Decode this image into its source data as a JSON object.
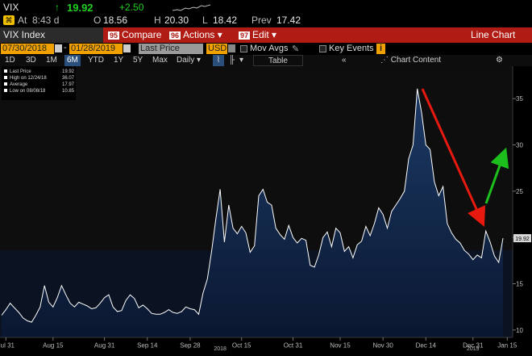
{
  "quote": {
    "ticker": "VIX",
    "arrow": "↑",
    "last": "19.92",
    "change": "+2.50",
    "at_label": "At",
    "time": "8:43 d",
    "open_label": "O",
    "open": "18.56",
    "high_label": "H",
    "high": "20.30",
    "low_label": "L",
    "low": "18.42",
    "prev_label": "Prev",
    "prev": "17.42"
  },
  "menubar": {
    "security": "VIX Index",
    "compare_num": "95",
    "compare": "Compare",
    "actions_num": "96",
    "actions": "Actions",
    "edit_num": "97",
    "edit": "Edit",
    "title": "Line Chart"
  },
  "controls": {
    "start_date": "07/30/2018",
    "end_date": "01/28/2019",
    "price_field": "Last Price",
    "currency": "USD",
    "mov_avgs": "Mov Avgs",
    "key_events": "Key Events",
    "key_events_badge": "i"
  },
  "tabs": {
    "ranges": [
      "1D",
      "3D",
      "1M",
      "6M",
      "YTD",
      "1Y",
      "5Y",
      "Max"
    ],
    "selected": "6M",
    "period": "Daily",
    "table": "Table",
    "chart_content": "Chart Content"
  },
  "legend": {
    "items": [
      {
        "label": "Last Price",
        "value": "19.92",
        "color": "#ffffff"
      },
      {
        "label": "High on 12/24/18",
        "value": "36.07",
        "color": "#ffffff"
      },
      {
        "label": "Average",
        "value": "17.97",
        "color": "#ffffff"
      },
      {
        "label": "Low on 08/08/18",
        "value": "10.85",
        "color": "#ffffff"
      }
    ]
  },
  "colors": {
    "menubar": "#b01b14",
    "field": "#f0a100",
    "line": "#ffffff",
    "area_top": "#1c3a66",
    "area_bottom": "#0a1730",
    "up": "#1fd11f",
    "down_arrow": "#e8190e",
    "up_arrow": "#1cbf1c"
  },
  "chart_data": {
    "type": "area",
    "series": [
      {
        "name": "Last Price",
        "values": [
          11.6,
          12.2,
          12.9,
          12.4,
          11.9,
          11.3,
          11.0,
          10.85,
          11.6,
          12.5,
          14.8,
          13.0,
          12.5,
          13.5,
          14.8,
          13.8,
          12.9,
          12.5,
          13.0,
          12.8,
          12.6,
          12.3,
          12.4,
          12.9,
          13.5,
          13.8,
          12.5,
          12.0,
          12.1,
          13.2,
          13.8,
          13.4,
          12.4,
          12.7,
          12.3,
          11.8,
          11.7,
          11.7,
          11.9,
          12.2,
          11.9,
          11.8,
          12.0,
          12.5,
          12.3,
          12.2,
          11.7,
          14.0,
          15.5,
          18.5,
          22.0,
          25.2,
          19.5,
          23.5,
          21.0,
          20.4,
          21.2,
          20.5,
          18.4,
          19.1,
          24.5,
          25.2,
          23.8,
          23.5,
          21.0,
          20.3,
          19.8,
          21.3,
          20.0,
          19.4,
          19.9,
          19.7,
          17.0,
          16.8,
          18.1,
          20.0,
          20.6,
          19.0,
          21.0,
          20.5,
          18.5,
          19.0,
          17.8,
          19.2,
          19.6,
          21.2,
          20.2,
          21.5,
          23.2,
          22.5,
          21.0,
          22.8,
          23.5,
          24.2,
          25.0,
          28.5,
          30.0,
          36.07,
          33.5,
          30.0,
          29.5,
          26.0,
          24.5,
          25.5,
          21.5,
          20.5,
          19.8,
          19.4,
          18.6,
          18.2,
          17.6,
          18.1,
          17.8,
          20.7,
          19.5,
          18.0,
          17.3,
          19.92
        ]
      }
    ],
    "x_tick_labels": [
      "Jul 31",
      "Aug 15",
      "Aug 31",
      "Sep 14",
      "Sep 28",
      "Oct 15",
      "Oct 31",
      "Nov 15",
      "Nov 30",
      "Dec 14",
      "Dec 31",
      "Jan 15"
    ],
    "x_year_labels": [
      "2018",
      "2019"
    ],
    "y_ticks": [
      10,
      15,
      20,
      25,
      30,
      35
    ],
    "ylim": [
      9.2,
      38.5
    ],
    "last_value_label": "19.92",
    "grid": false
  }
}
